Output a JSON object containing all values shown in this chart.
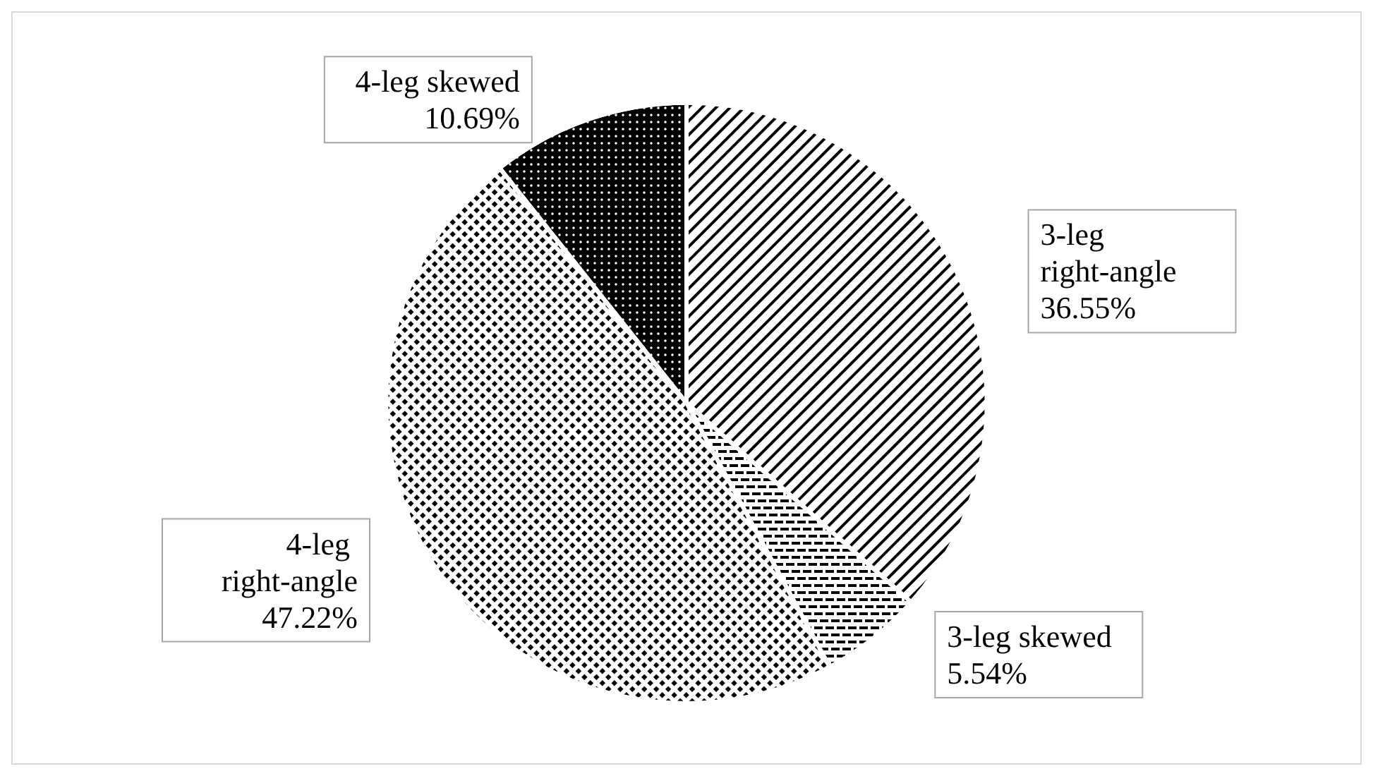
{
  "chart_data": {
    "type": "pie",
    "categories": [
      "3-leg right-angle",
      "3-leg skewed",
      "4-leg right-angle",
      "4-leg skewed"
    ],
    "values": [
      36.55,
      5.54,
      47.22,
      10.69
    ],
    "colors": [
      "#ffffff",
      "#ffffff",
      "#ffffff",
      "#000000"
    ],
    "value_labels": [
      "36.55%",
      "5.54%",
      "47.22%",
      "10.69%"
    ],
    "legend": false
  }
}
